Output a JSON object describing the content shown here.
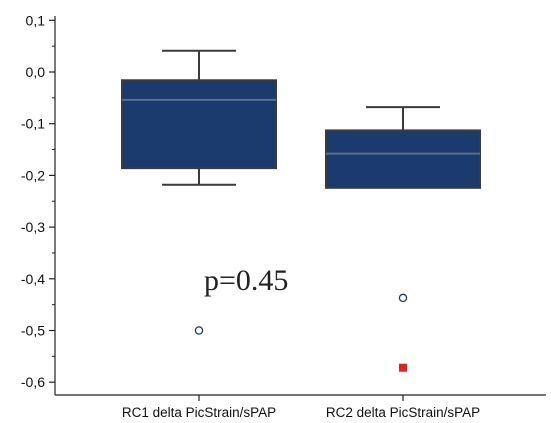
{
  "chart_data": {
    "type": "box",
    "categories": [
      "RC1 delta PicStrain/sPAP",
      "RC2 delta PicStrain/sPAP"
    ],
    "ylim": [
      -0.62,
      0.11
    ],
    "yticks": [
      "0,1",
      "0,0",
      "-0,1",
      "-0,2",
      "-0,3",
      "-0,4",
      "-0,5",
      "-0,6"
    ],
    "ytick_values": [
      0.1,
      0.0,
      -0.1,
      -0.2,
      -0.3,
      -0.4,
      -0.5,
      -0.6
    ],
    "boxes": [
      {
        "category": "RC1 delta PicStrain/sPAP",
        "whisker_low": -0.218,
        "q1": -0.186,
        "median": -0.054,
        "q3": -0.016,
        "whisker_high": 0.041,
        "outliers": [
          {
            "value": -0.5,
            "kind": "outside"
          }
        ]
      },
      {
        "category": "RC2 delta PicStrain/sPAP",
        "whisker_low": -0.224,
        "q1": -0.224,
        "median": -0.158,
        "q3": -0.113,
        "whisker_high": -0.068,
        "outliers": [
          {
            "value": -0.437,
            "kind": "outside"
          },
          {
            "value": -0.572,
            "kind": "far-out"
          }
        ]
      }
    ],
    "annotation": "p=0.45",
    "colors": {
      "box_fill": "#1b3a6e",
      "box_edge": "#3b3b3b",
      "outside_marker": "#1b3a6e",
      "far_out_marker": "#e0231c"
    },
    "grid": false
  }
}
